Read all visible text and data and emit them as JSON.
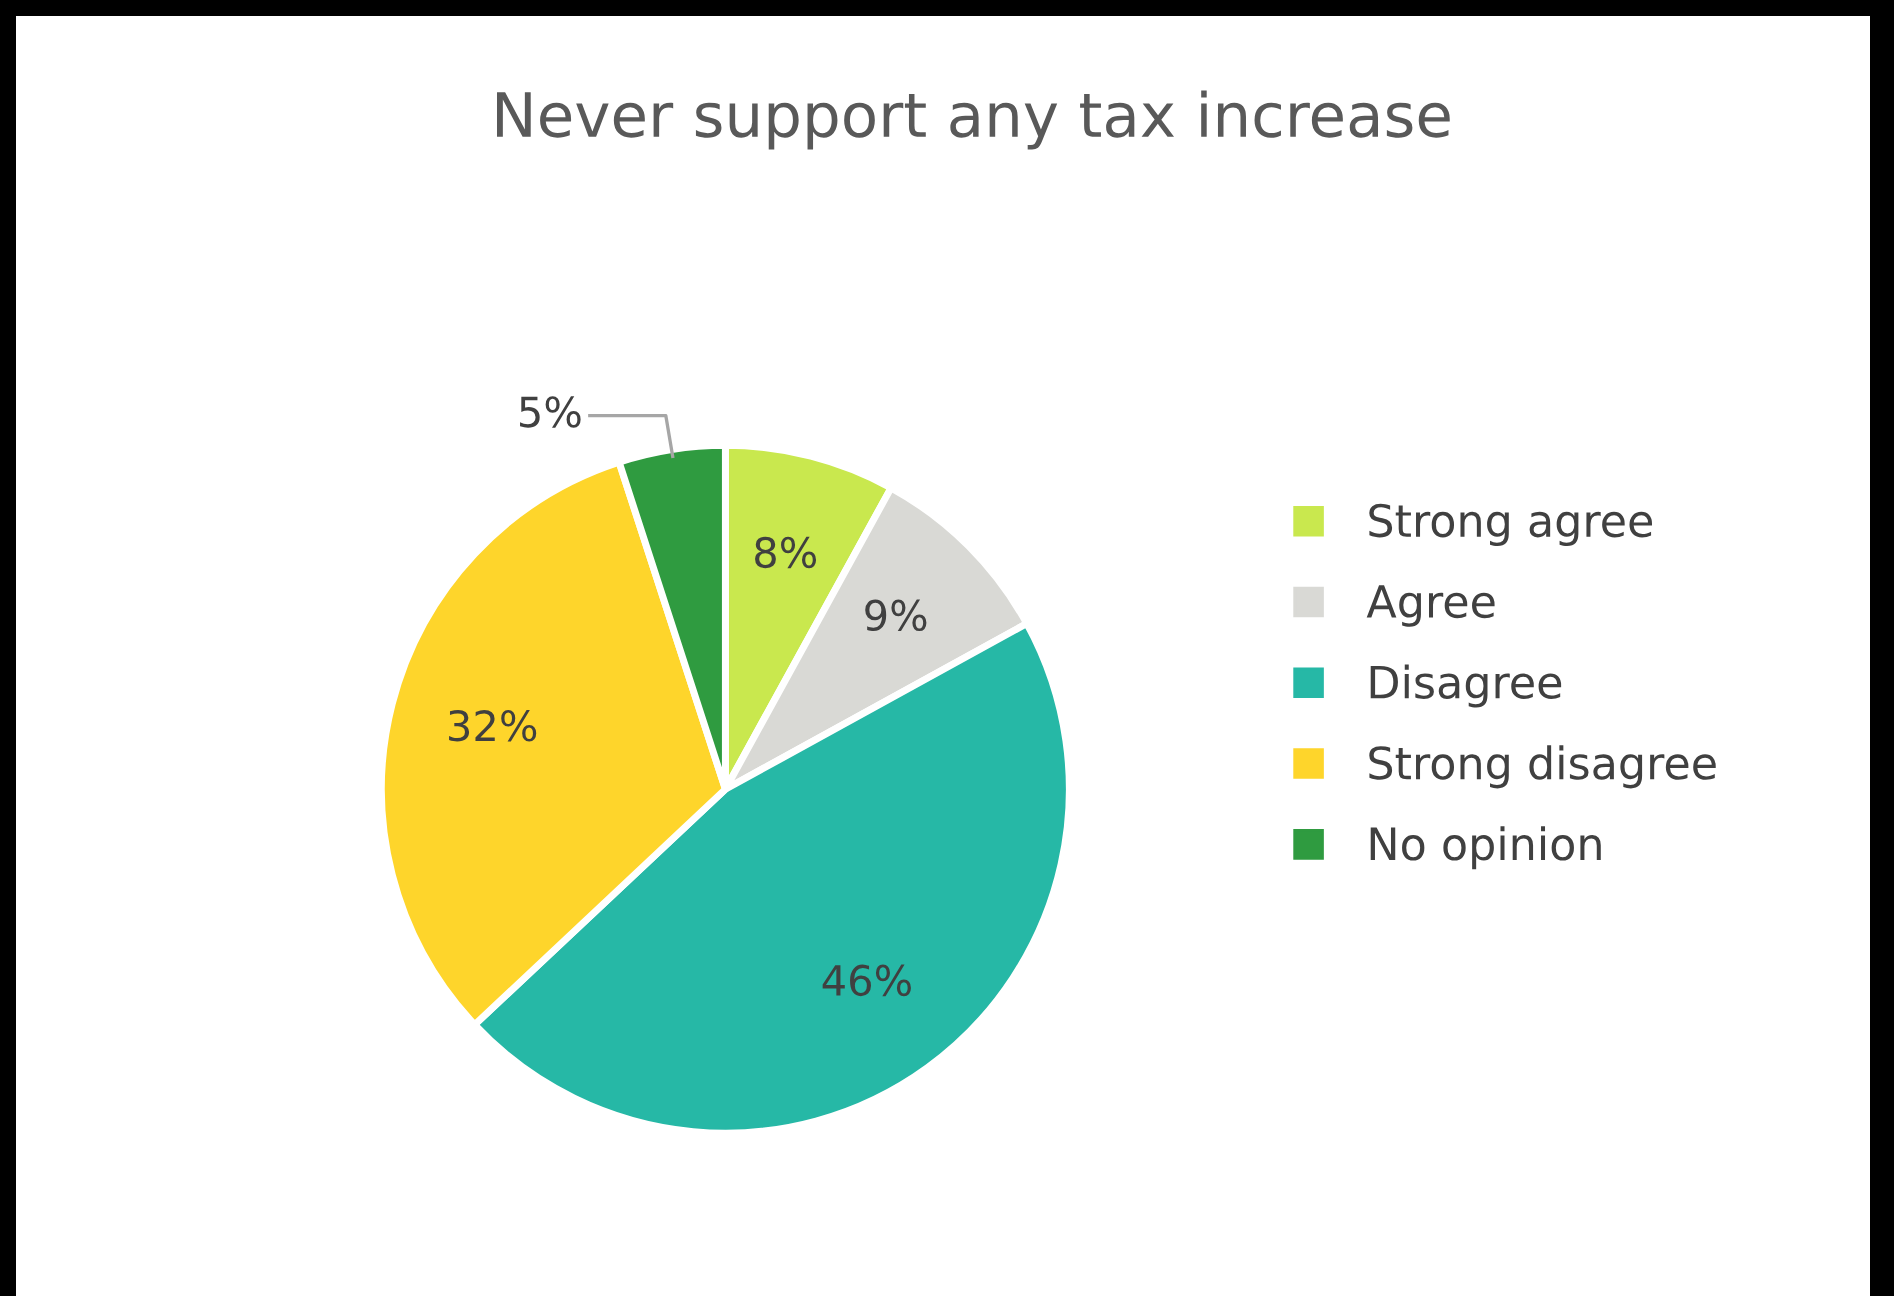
{
  "chart_data": {
    "type": "pie",
    "title": "Never support any tax increase",
    "categories": [
      "Strong agree",
      "Agree",
      "Disagree",
      "Strong disagree",
      "No opinion"
    ],
    "values": [
      8,
      9,
      46,
      32,
      5
    ],
    "value_labels": [
      "8%",
      "9%",
      "46%",
      "32%",
      "5%"
    ],
    "colors": [
      "#c9e84e",
      "#d9d9d5",
      "#26b8a6",
      "#fed52b",
      "#2f9b40"
    ],
    "legend": "right"
  }
}
